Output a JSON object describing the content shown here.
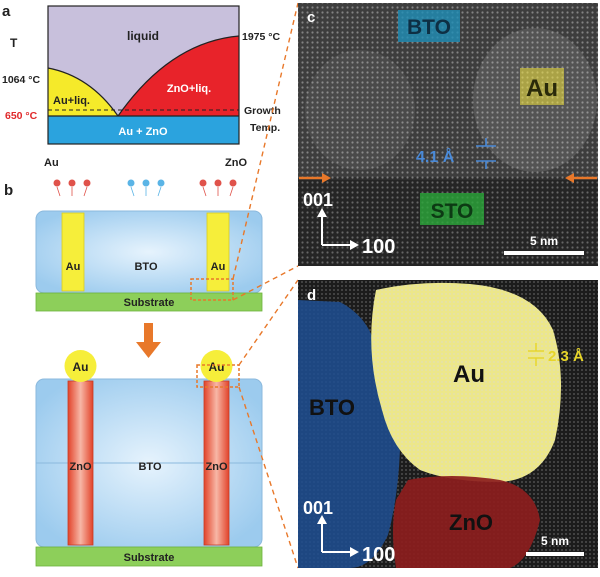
{
  "panel_a": {
    "label": "a",
    "t_axis": "T",
    "liquid": "liquid",
    "melt_au": "1064 °C",
    "melt_zno": "1975 °C",
    "growth_temp": "650 °C",
    "au_liq": "Au+liq.",
    "zno_liq": "ZnO+liq.",
    "au_zno": "Au + ZnO",
    "growth_label_1": "Growth",
    "growth_label_2": "Temp.",
    "x_left": "Au",
    "x_right": "ZnO",
    "colors": {
      "liquid": "#c8c0dc",
      "au_liq": "#f5ea2a",
      "zno_liq": "#e8232a",
      "solid": "#2ba3de",
      "red_text": "#e0282a"
    }
  },
  "panel_b": {
    "label": "b",
    "au": "Au",
    "bto": "BTO",
    "zno": "ZnO",
    "substrate": "Substrate",
    "colors": {
      "bto": "#a9d3f1",
      "au": "#f6ee3a",
      "zno": "#e84b2e",
      "substrate": "#8dcf5a",
      "arrow": "#e8782a"
    }
  },
  "panel_c": {
    "label": "c",
    "bto": "BTO",
    "au": "Au",
    "sto": "STO",
    "spacing": "4.1 Å",
    "dir_001": "001",
    "dir_100": "100",
    "scale": "5 nm"
  },
  "panel_d": {
    "label": "d",
    "au": "Au",
    "bto": "BTO",
    "zno": "ZnO",
    "spacing": "2.3 Å",
    "dir_001": "001",
    "dir_100": "100",
    "scale": "5 nm"
  }
}
